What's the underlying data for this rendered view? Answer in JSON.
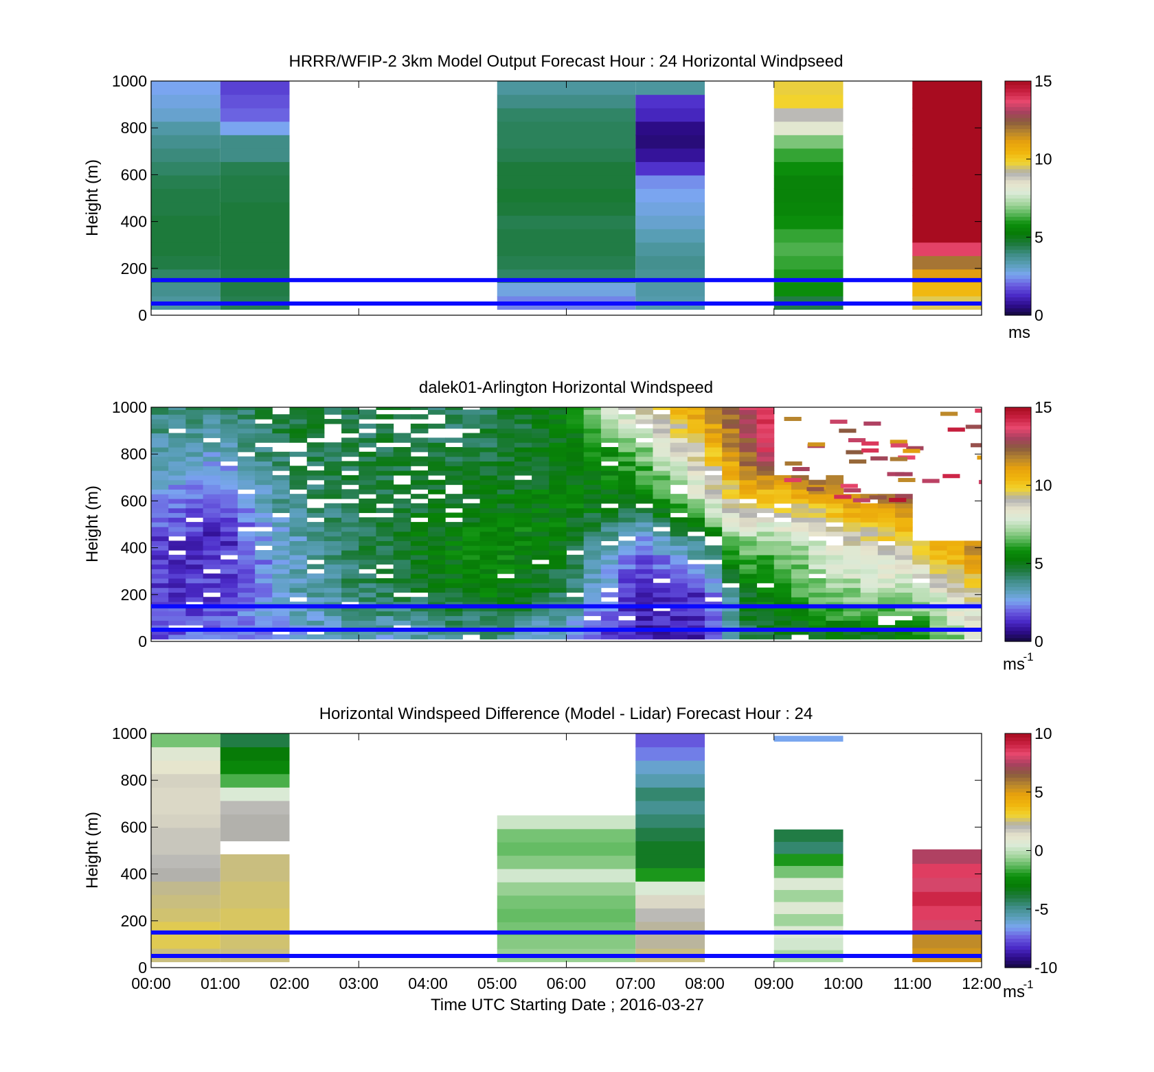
{
  "figure": {
    "xlabel": "Time UTC  Starting Date ; 2016-03-27",
    "x_ticks": [
      "00:00",
      "01:00",
      "02:00",
      "03:00",
      "04:00",
      "05:00",
      "06:00",
      "07:00",
      "08:00",
      "09:00",
      "10:00",
      "11:00",
      "12:00"
    ],
    "y_ticks": [
      "0",
      "200",
      "400",
      "600",
      "800",
      "1000"
    ],
    "colormap": [
      "#130a3c",
      "#2e0c8c",
      "#4b2bc8",
      "#6a5ee0",
      "#7aa6f0",
      "#5a9fb8",
      "#3f8d86",
      "#1e7a3e",
      "#077a07",
      "#0b8f0b",
      "#5cb85c",
      "#a6d6a0",
      "#d9ead6",
      "#e8e4cc",
      "#b0b0b0",
      "#f2d42e",
      "#f0b60e",
      "#e8a20c",
      "#b8862e",
      "#8a5c3e",
      "#a84060",
      "#e8486e",
      "#c82040",
      "#a80c20"
    ]
  },
  "chart_data": [
    {
      "type": "heatmap",
      "title": "HRRR/WFIP-2 3km Model Output   Forecast Hour : 24 Horizontal Windpseed",
      "ylabel": "Height (m)",
      "xlim": [
        0,
        12
      ],
      "ylim": [
        0,
        1000
      ],
      "colorbar": {
        "min": 0,
        "max": 15,
        "ticks": [
          "0",
          "5",
          "10",
          "15"
        ],
        "unit": "ms"
      },
      "reference_lines_m": [
        150,
        50
      ],
      "columns": [
        {
          "x0": 0,
          "x1": 1,
          "z": [
            3.6,
            3.8,
            4.2,
            4.5,
            4.6,
            4.6,
            4.6,
            4.5,
            4.5,
            4.4,
            4.2,
            4.0,
            3.8,
            3.5,
            3.0,
            2.8,
            2.6
          ]
        },
        {
          "x0": 1,
          "x1": 2,
          "z": [
            4.4,
            4.5,
            4.5,
            4.6,
            4.6,
            4.6,
            4.6,
            4.6,
            4.5,
            4.5,
            4.4,
            3.9,
            3.9,
            2.6,
            2.0,
            1.8,
            1.6
          ]
        },
        {
          "x0": 5,
          "x1": 7,
          "z": [
            2.3,
            2.8,
            4.2,
            4.4,
            4.5,
            4.5,
            4.4,
            4.6,
            4.7,
            4.6,
            4.6,
            4.4,
            4.3,
            4.3,
            4.2,
            3.9,
            3.6
          ]
        },
        {
          "x0": 7,
          "x1": 8,
          "z": [
            3.4,
            3.5,
            3.7,
            3.8,
            3.6,
            3.3,
            3.0,
            2.8,
            2.6,
            2.4,
            1.4,
            0.8,
            0.5,
            0.6,
            1.2,
            1.4,
            3.6
          ]
        },
        {
          "x0": 9,
          "x1": 10,
          "z": [
            4.5,
            5.8,
            6.0,
            6.2,
            6.4,
            6.2,
            5.8,
            5.6,
            5.5,
            5.5,
            5.8,
            6.2,
            6.8,
            8.2,
            9.0,
            9.8,
            9.7
          ]
        },
        {
          "x0": 11,
          "x1": 12,
          "z": [
            9.6,
            10.4,
            11.2,
            12.0,
            13.8,
            15.0,
            15.0,
            15.0,
            15.0,
            15.0,
            15.0,
            15.0,
            15.0,
            15.0,
            15.0,
            15.0,
            15.0
          ]
        }
      ]
    },
    {
      "type": "heatmap",
      "title": "dalek01-Arlington  Horizontal Windspeed",
      "ylabel": "Height (m)",
      "xlim": [
        0,
        12
      ],
      "ylim": [
        0,
        1000
      ],
      "colorbar": {
        "min": 0,
        "max": 15,
        "ticks": [
          "0",
          "5",
          "10",
          "15"
        ],
        "unit": "ms",
        "unit_exponent": "-1"
      },
      "reference_lines_m": [
        150,
        50
      ],
      "time_resolution_h": 0.25,
      "profile_anchor_hours": [
        0,
        1,
        2,
        3,
        4,
        5,
        6,
        7,
        8,
        8.5,
        9,
        10,
        11,
        12
      ],
      "profile_anchor_heights_m": [
        0,
        200,
        400,
        600,
        800,
        1000
      ],
      "profile_anchor_values": [
        [
          2.0,
          1.5,
          1.5,
          2.5,
          3.5,
          4.0
        ],
        [
          2.0,
          1.6,
          1.2,
          1.5,
          3.0,
          4.2
        ],
        [
          2.8,
          3.2,
          3.0,
          4.0,
          4.5,
          4.8
        ],
        [
          3.0,
          4.2,
          4.4,
          4.5,
          4.5,
          4.5
        ],
        [
          3.2,
          4.8,
          5.2,
          4.8,
          4.5,
          4.2
        ],
        [
          3.8,
          5.5,
          5.8,
          5.0,
          4.6,
          4.4
        ],
        [
          2.5,
          4.2,
          5.2,
          5.5,
          5.0,
          5.5
        ],
        [
          1.0,
          1.2,
          2.0,
          5.0,
          6.5,
          9.0
        ],
        [
          1.0,
          1.5,
          4.0,
          8.0,
          9.5,
          11.5
        ],
        [
          4.5,
          4.5,
          7.0,
          10.0,
          12.0,
          13.0
        ],
        [
          4.5,
          6.0,
          6.5,
          10.0,
          14.0,
          14.5
        ],
        [
          5.0,
          7.0,
          8.5,
          11.0,
          14.0,
          14.5
        ],
        [
          5.0,
          7.5,
          9.5,
          12.5,
          14.0,
          14.5
        ],
        [
          8.0,
          9.5,
          12.0,
          14.5,
          14.5,
          14.5
        ]
      ]
    },
    {
      "type": "heatmap",
      "title": "Horizontal Windspeed Difference (Model - Lidar) Forecast Hour : 24",
      "ylabel": "Height (m)",
      "xlim": [
        0,
        12
      ],
      "ylim": [
        0,
        1000
      ],
      "colorbar": {
        "min": -10,
        "max": 10,
        "ticks": [
          "-10",
          "-5",
          "0",
          "5",
          "10"
        ],
        "unit": "ms",
        "unit_exponent": "-1"
      },
      "reference_lines_m": [
        150,
        50
      ],
      "columns": [
        {
          "x0": 0,
          "x1": 1,
          "z": [
            2.5,
            2.8,
            2.8,
            2.6,
            2.5,
            2.4,
            2.2,
            2.0,
            1.8,
            1.8,
            1.6,
            1.5,
            1.5,
            1.6,
            1.2,
            0.8,
            -1.0
          ],
          "y_top": 1000
        },
        {
          "x0": 1,
          "x1": 2,
          "z": [
            2.5,
            2.6,
            2.7,
            2.7,
            2.6,
            2.6,
            2.5,
            2.5,
            null,
            2.2,
            2.2,
            2.0,
            0.5,
            -1.5,
            -2.5,
            -3.0,
            -4.0
          ],
          "y_top": 1000
        },
        {
          "x0": 5,
          "x1": 7,
          "z": [
            -0.6,
            -0.8,
            -1.0,
            -1.2,
            -1.0,
            -0.6,
            0.3,
            -0.8,
            -1.2,
            -1.0,
            0.2
          ],
          "y_top": 650
        },
        {
          "x0": 7,
          "x1": 8,
          "z": [
            2.5,
            2.3,
            2.3,
            2.0,
            1.5,
            0.5,
            -2.0,
            -3.5,
            -3.5,
            -4.0,
            -4.5,
            -5.0,
            -4.5,
            -5.5,
            -6.0,
            -7.0,
            -7.5
          ],
          "y_top": 1000
        },
        {
          "x0": 9,
          "x1": 10,
          "z": [
            -0.4,
            0.3,
            0.6,
            -0.5,
            0.7,
            -0.5,
            0.6,
            -1.0,
            -2.0,
            -4.5,
            -4.0
          ],
          "y_top": 590
        },
        {
          "x0": 11,
          "x1": 12,
          "z": [
            5.2,
            5.5,
            8.0,
            8.5,
            9.0,
            8.0,
            8.5,
            7.5
          ],
          "y_top": 505
        }
      ],
      "isolated_segments": [
        {
          "x0": 9,
          "x1": 10,
          "y0": 965,
          "y1": 990,
          "z": -6.5
        }
      ]
    }
  ]
}
